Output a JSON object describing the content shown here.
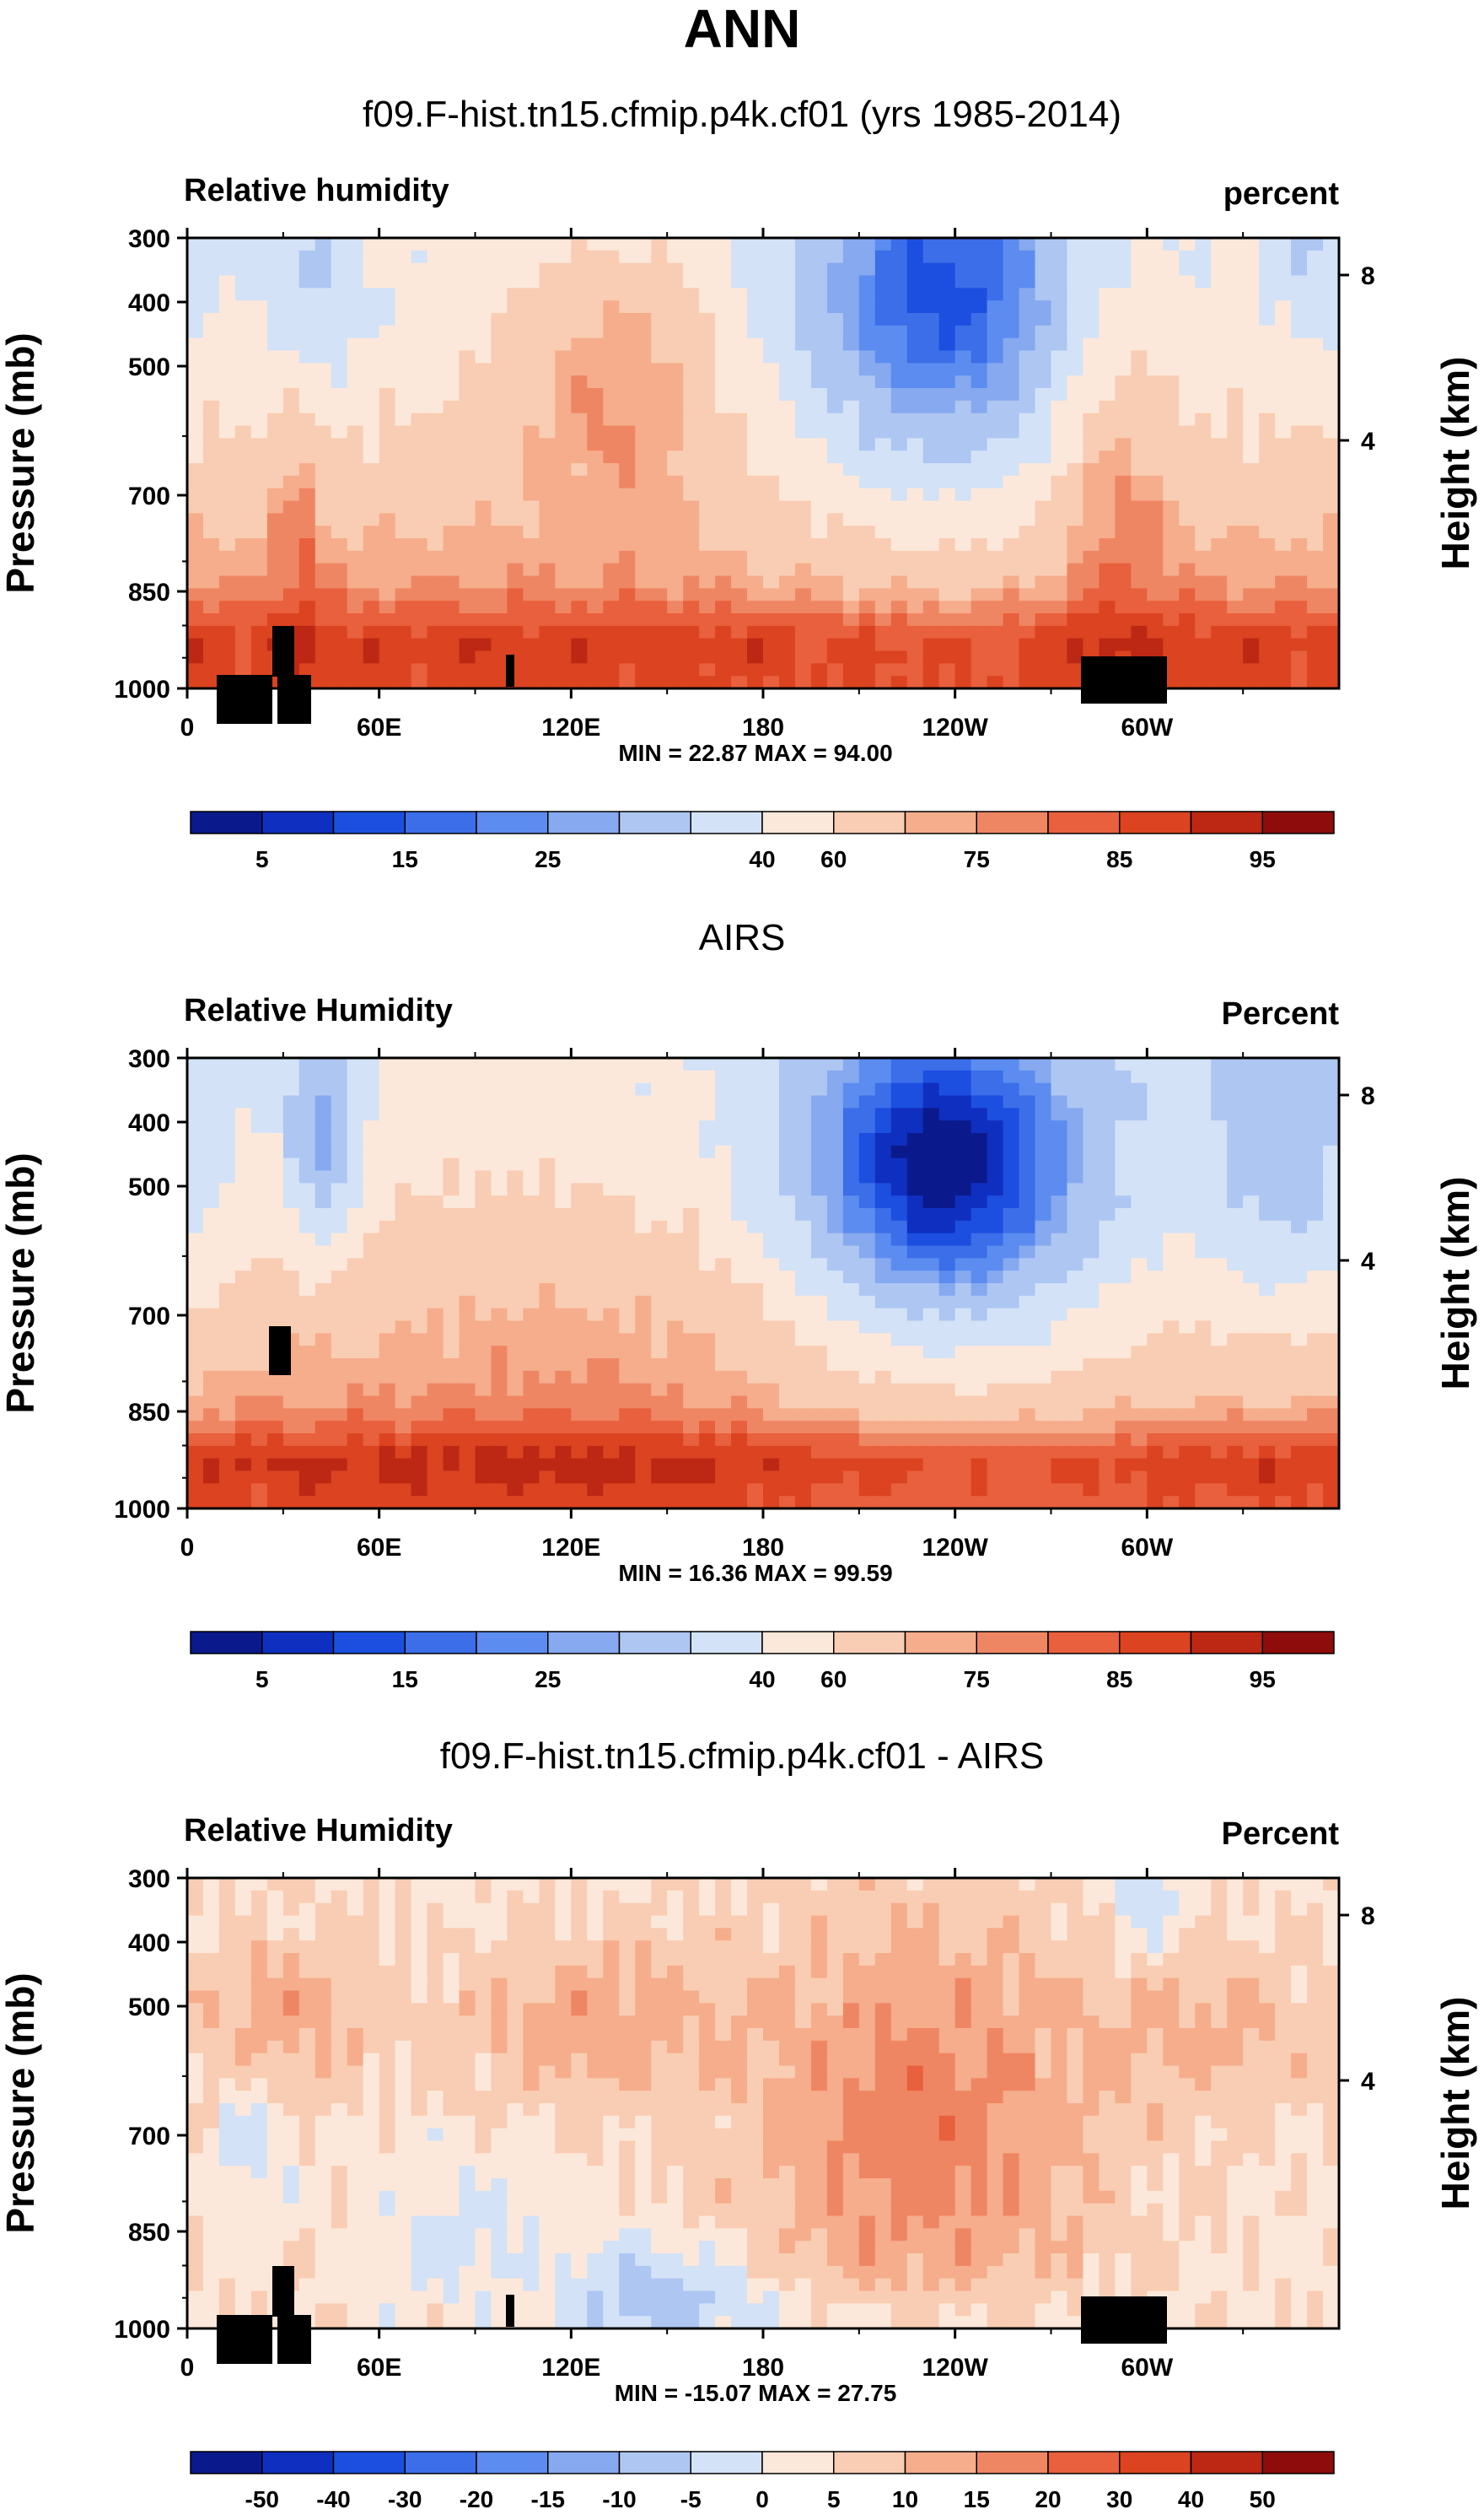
{
  "main_title": "ANN",
  "chart_data": [
    {
      "type": "heatmap",
      "title": "f09.F-hist.tn15.cfmip.p4k.cf01 (yrs 1985-2014)",
      "left_label": "Relative humidity",
      "right_label": "percent",
      "ylabel": "Pressure (mb)",
      "ylabel_right": "Height (km)",
      "y_ticks": [
        "300",
        "400",
        "500",
        "700",
        "850",
        "1000"
      ],
      "y_right_ticks": [
        "8",
        "4"
      ],
      "x_ticks": [
        "0",
        "60E",
        "120E",
        "180",
        "120W",
        "60W"
      ],
      "stats": "MIN = 22.87  MAX = 94.00",
      "colorbar_labels": [
        "5",
        "15",
        "25",
        "40",
        "60",
        "75",
        "85",
        "95"
      ],
      "colorbar_colors": [
        "#0a1a8c",
        "#0f2fc0",
        "#1c4fe0",
        "#3b6ee8",
        "#5c8cf0",
        "#86a9ef",
        "#aec6f2",
        "#d3e2f7",
        "#fce8da",
        "#f9cdb3",
        "#f5ad8c",
        "#ef8663",
        "#e8603d",
        "#db4321",
        "#bc2814",
        "#8e0c0c"
      ],
      "min": 22.87,
      "max": 94.0
    },
    {
      "type": "heatmap",
      "title": "AIRS",
      "left_label": "Relative Humidity",
      "right_label": "Percent",
      "ylabel": "Pressure (mb)",
      "ylabel_right": "Height (km)",
      "y_ticks": [
        "300",
        "400",
        "500",
        "700",
        "850",
        "1000"
      ],
      "y_right_ticks": [
        "8",
        "4"
      ],
      "x_ticks": [
        "0",
        "60E",
        "120E",
        "180",
        "120W",
        "60W"
      ],
      "stats": "MIN = 16.36  MAX = 99.59",
      "colorbar_labels": [
        "5",
        "15",
        "25",
        "40",
        "60",
        "75",
        "85",
        "95"
      ],
      "colorbar_colors": [
        "#0a1a8c",
        "#0f2fc0",
        "#1c4fe0",
        "#3b6ee8",
        "#5c8cf0",
        "#86a9ef",
        "#aec6f2",
        "#d3e2f7",
        "#fce8da",
        "#f9cdb3",
        "#f5ad8c",
        "#ef8663",
        "#e8603d",
        "#db4321",
        "#bc2814",
        "#8e0c0c"
      ],
      "min": 16.36,
      "max": 99.59
    },
    {
      "type": "heatmap",
      "title": "f09.F-hist.tn15.cfmip.p4k.cf01 - AIRS",
      "left_label": "Relative Humidity",
      "right_label": "Percent",
      "ylabel": "Pressure (mb)",
      "ylabel_right": "Height (km)",
      "y_ticks": [
        "300",
        "400",
        "500",
        "700",
        "850",
        "1000"
      ],
      "y_right_ticks": [
        "8",
        "4"
      ],
      "x_ticks": [
        "0",
        "60E",
        "120E",
        "180",
        "120W",
        "60W"
      ],
      "stats": "MIN = -15.07  MAX = 27.75",
      "colorbar_labels": [
        "-50",
        "-40",
        "-30",
        "-20",
        "-15",
        "-10",
        "-5",
        "0",
        "5",
        "10",
        "15",
        "20",
        "30",
        "40",
        "50"
      ],
      "colorbar_colors": [
        "#0a1a8c",
        "#0f2fc0",
        "#1c4fe0",
        "#3b6ee8",
        "#5c8cf0",
        "#86a9ef",
        "#aec6f2",
        "#d3e2f7",
        "#fce8da",
        "#f9cdb3",
        "#f5ad8c",
        "#ef8663",
        "#e8603d",
        "#db4321",
        "#bc2814",
        "#8e0c0c"
      ],
      "min": -15.07,
      "max": 27.75
    }
  ]
}
